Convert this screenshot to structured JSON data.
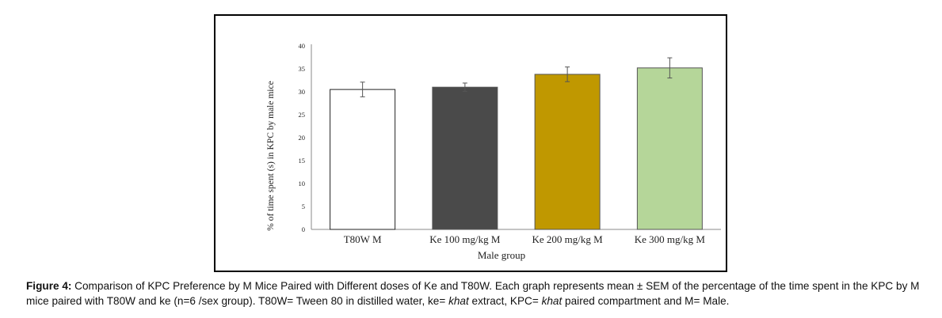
{
  "chart_data": {
    "type": "bar",
    "categories": [
      "T80W M",
      "Ke 100 mg/kg M",
      "Ke 200 mg/kg M",
      "Ke 300 mg/kg M"
    ],
    "values": [
      30.5,
      31.0,
      33.8,
      35.2
    ],
    "errors": [
      1.6,
      0.9,
      1.6,
      2.2
    ],
    "colors": [
      "#ffffff",
      "#4a4a4a",
      "#c09800",
      "#b5d699"
    ],
    "xlabel": "Male group",
    "ylabel": "% of time spent (s) in KPC  by male mice",
    "ylim": [
      0,
      40
    ],
    "yticks": [
      0,
      5,
      10,
      15,
      20,
      25,
      30,
      35,
      40
    ],
    "grid": false,
    "legend": "none"
  },
  "caption": {
    "label": "Figure 4:",
    "text1": " Comparison of KPC Preference by M Mice Paired with Different doses of Ke and T80W. Each graph represents mean ± SEM of the percentage of the time spent in the KPC by M mice paired with T80W and ke (n=6 /sex group). T80W= Tween 80 in distilled water, ke= ",
    "italic1": "khat",
    "text2": " extract, KPC= ",
    "italic2": "khat",
    "text3": " paired compartment and M= Male."
  }
}
